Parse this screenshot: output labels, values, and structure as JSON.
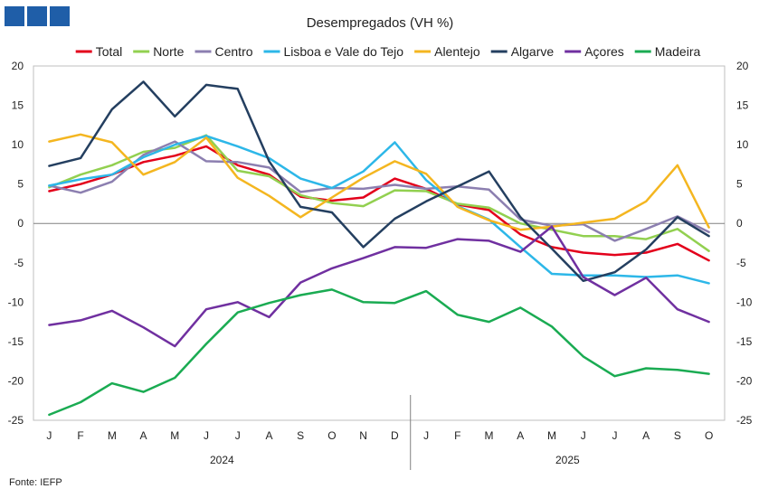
{
  "brand": {
    "logo_color": "#1f5ea8"
  },
  "source": "Fonte: IEFP",
  "chart_data": {
    "type": "line",
    "title": "Desempregados  (VH %)",
    "xlabel": "",
    "ylabel": "",
    "ylim": [
      -25,
      20
    ],
    "yticks": [
      20,
      15,
      10,
      5,
      0,
      -5,
      -10,
      -15,
      -20,
      -25
    ],
    "categories": [
      "J",
      "F",
      "M",
      "A",
      "M",
      "J",
      "J",
      "A",
      "S",
      "O",
      "N",
      "D",
      "J",
      "F",
      "M",
      "A",
      "M",
      "J",
      "J",
      "A",
      "S",
      "O"
    ],
    "years": [
      {
        "label": "2024",
        "start": 0,
        "end": 11
      },
      {
        "label": "2025",
        "start": 12,
        "end": 21
      }
    ],
    "series": [
      {
        "name": "Total",
        "color": "#e3001b",
        "values": [
          4.1,
          5.0,
          6.2,
          7.8,
          8.6,
          9.8,
          7.4,
          6.2,
          3.4,
          2.9,
          3.3,
          5.7,
          4.4,
          2.4,
          1.7,
          -1.4,
          -3.0,
          -3.7,
          -4.0,
          -3.7,
          -2.6,
          -4.7
        ]
      },
      {
        "name": "Norte",
        "color": "#92d050",
        "values": [
          4.6,
          6.2,
          7.4,
          9.1,
          9.6,
          11.2,
          6.7,
          6.0,
          3.6,
          2.6,
          2.2,
          4.2,
          4.1,
          2.5,
          2.0,
          0.0,
          -0.8,
          -1.6,
          -1.6,
          -2.0,
          -0.7,
          -3.5
        ]
      },
      {
        "name": "Centro",
        "color": "#8c7fb0",
        "values": [
          4.8,
          3.9,
          5.3,
          8.7,
          10.4,
          7.9,
          7.8,
          7.1,
          4.0,
          4.5,
          4.4,
          4.9,
          4.4,
          4.7,
          4.3,
          0.5,
          -0.3,
          -0.1,
          -2.2,
          -0.7,
          0.9,
          -1.1
        ]
      },
      {
        "name": "Lisboa e Vale do Tejo",
        "color": "#2db7e8",
        "values": [
          4.8,
          5.6,
          6.2,
          8.4,
          10.0,
          11.1,
          9.8,
          8.3,
          5.7,
          4.5,
          6.6,
          10.3,
          5.5,
          2.2,
          0.5,
          -3.0,
          -6.4,
          -6.6,
          -6.6,
          -6.8,
          -6.6,
          -7.6
        ]
      },
      {
        "name": "Alentejo",
        "color": "#f4b620",
        "values": [
          10.4,
          11.3,
          10.3,
          6.2,
          7.8,
          10.9,
          5.8,
          3.5,
          0.8,
          3.3,
          5.8,
          7.9,
          6.3,
          2.1,
          0.4,
          -0.8,
          -0.4,
          0.1,
          0.6,
          2.8,
          7.4,
          -0.5
        ]
      },
      {
        "name": "Algarve",
        "color": "#243f60",
        "values": [
          7.3,
          8.3,
          14.5,
          18.0,
          13.6,
          17.6,
          17.1,
          7.9,
          2.1,
          1.4,
          -3.0,
          0.6,
          2.8,
          4.7,
          6.6,
          0.8,
          -3.2,
          -7.3,
          -6.2,
          -3.3,
          0.8,
          -1.6
        ]
      },
      {
        "name": "Açores",
        "color": "#7030a0",
        "values": [
          -12.9,
          -12.3,
          -11.1,
          -13.2,
          -15.6,
          -10.9,
          -10.0,
          -11.9,
          -7.5,
          -5.7,
          -4.4,
          -3.0,
          -3.1,
          -2.0,
          -2.2,
          -3.6,
          -0.4,
          -6.8,
          -9.1,
          -6.9,
          -10.9,
          -12.5
        ]
      },
      {
        "name": "Madeira",
        "color": "#1aab52",
        "values": [
          -24.3,
          -22.7,
          -20.3,
          -21.4,
          -19.6,
          -15.3,
          -11.3,
          -10.1,
          -9.1,
          -8.4,
          -10.0,
          -10.1,
          -8.6,
          -11.6,
          -12.5,
          -10.7,
          -13.1,
          -16.9,
          -19.4,
          -18.4,
          -18.6,
          -19.1
        ]
      }
    ]
  }
}
